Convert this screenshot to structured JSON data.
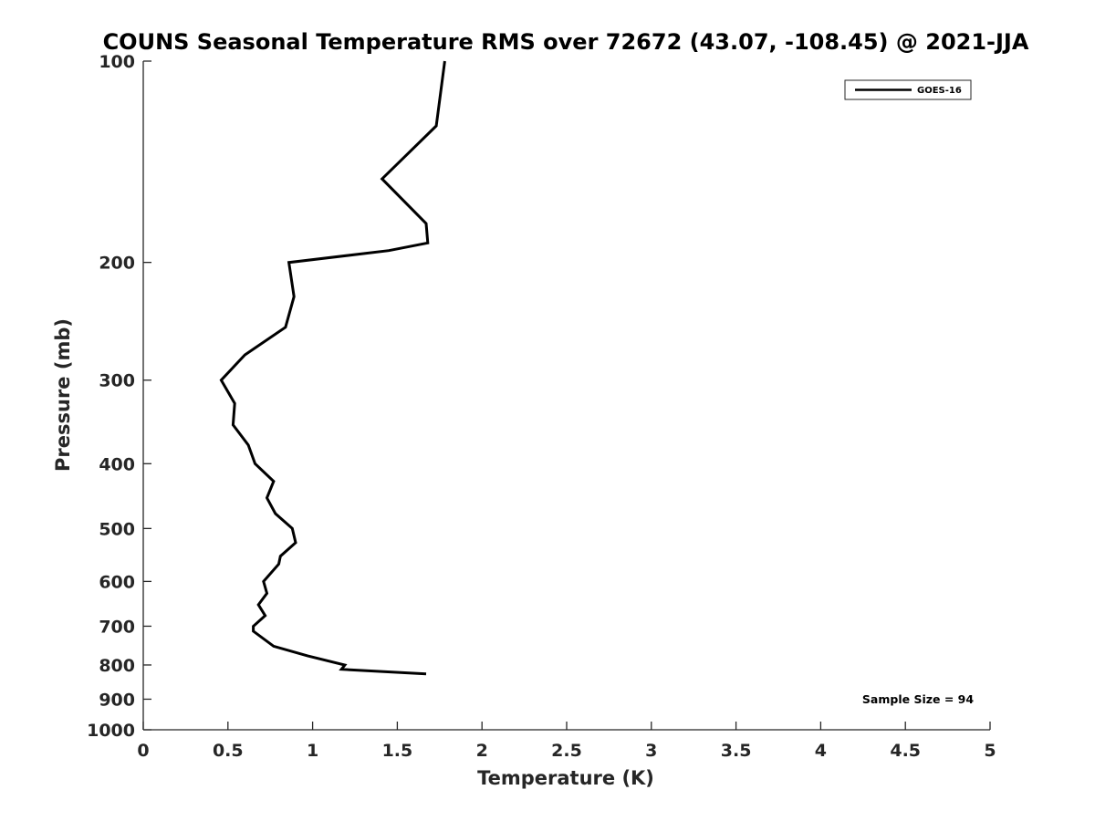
{
  "chart_data": {
    "type": "line",
    "title": "COUNS Seasonal Temperature RMS over 72672 (43.07, -108.45) @ 2021-JJA",
    "xlabel": "Temperature (K)",
    "ylabel": "Pressure (mb)",
    "xlim": [
      0,
      5
    ],
    "ylim": [
      100,
      1000
    ],
    "y_scale": "log",
    "y_reversed": true,
    "grid": false,
    "legend_position": "top-right",
    "x_ticks": [
      "0",
      "0.5",
      "1",
      "1.5",
      "2",
      "2.5",
      "3",
      "3.5",
      "4",
      "4.5",
      "5"
    ],
    "x_tick_values": [
      0,
      0.5,
      1,
      1.5,
      2,
      2.5,
      3,
      3.5,
      4,
      4.5,
      5
    ],
    "y_ticks": [
      "100",
      "200",
      "300",
      "400",
      "500",
      "600",
      "700",
      "800",
      "900",
      "1000"
    ],
    "y_tick_values": [
      100,
      200,
      300,
      400,
      500,
      600,
      700,
      800,
      900,
      1000
    ],
    "series": [
      {
        "name": "GOES-16",
        "color": "#000000",
        "points": [
          [
            1.78,
            100
          ],
          [
            1.73,
            125
          ],
          [
            1.41,
            150
          ],
          [
            1.67,
            175
          ],
          [
            1.68,
            187
          ],
          [
            1.45,
            192
          ],
          [
            0.86,
            200
          ],
          [
            0.89,
            225
          ],
          [
            0.84,
            250
          ],
          [
            0.6,
            275
          ],
          [
            0.46,
            300
          ],
          [
            0.54,
            325
          ],
          [
            0.53,
            350
          ],
          [
            0.62,
            375
          ],
          [
            0.66,
            400
          ],
          [
            0.77,
            425
          ],
          [
            0.73,
            450
          ],
          [
            0.78,
            475
          ],
          [
            0.88,
            500
          ],
          [
            0.9,
            525
          ],
          [
            0.81,
            550
          ],
          [
            0.8,
            565
          ],
          [
            0.71,
            600
          ],
          [
            0.73,
            625
          ],
          [
            0.68,
            650
          ],
          [
            0.72,
            675
          ],
          [
            0.65,
            700
          ],
          [
            0.65,
            712
          ],
          [
            0.77,
            750
          ],
          [
            0.97,
            775
          ],
          [
            1.19,
            800
          ],
          [
            1.17,
            812
          ],
          [
            1.67,
            825
          ]
        ]
      }
    ],
    "annotations": [
      "Sample Size = 94"
    ]
  }
}
